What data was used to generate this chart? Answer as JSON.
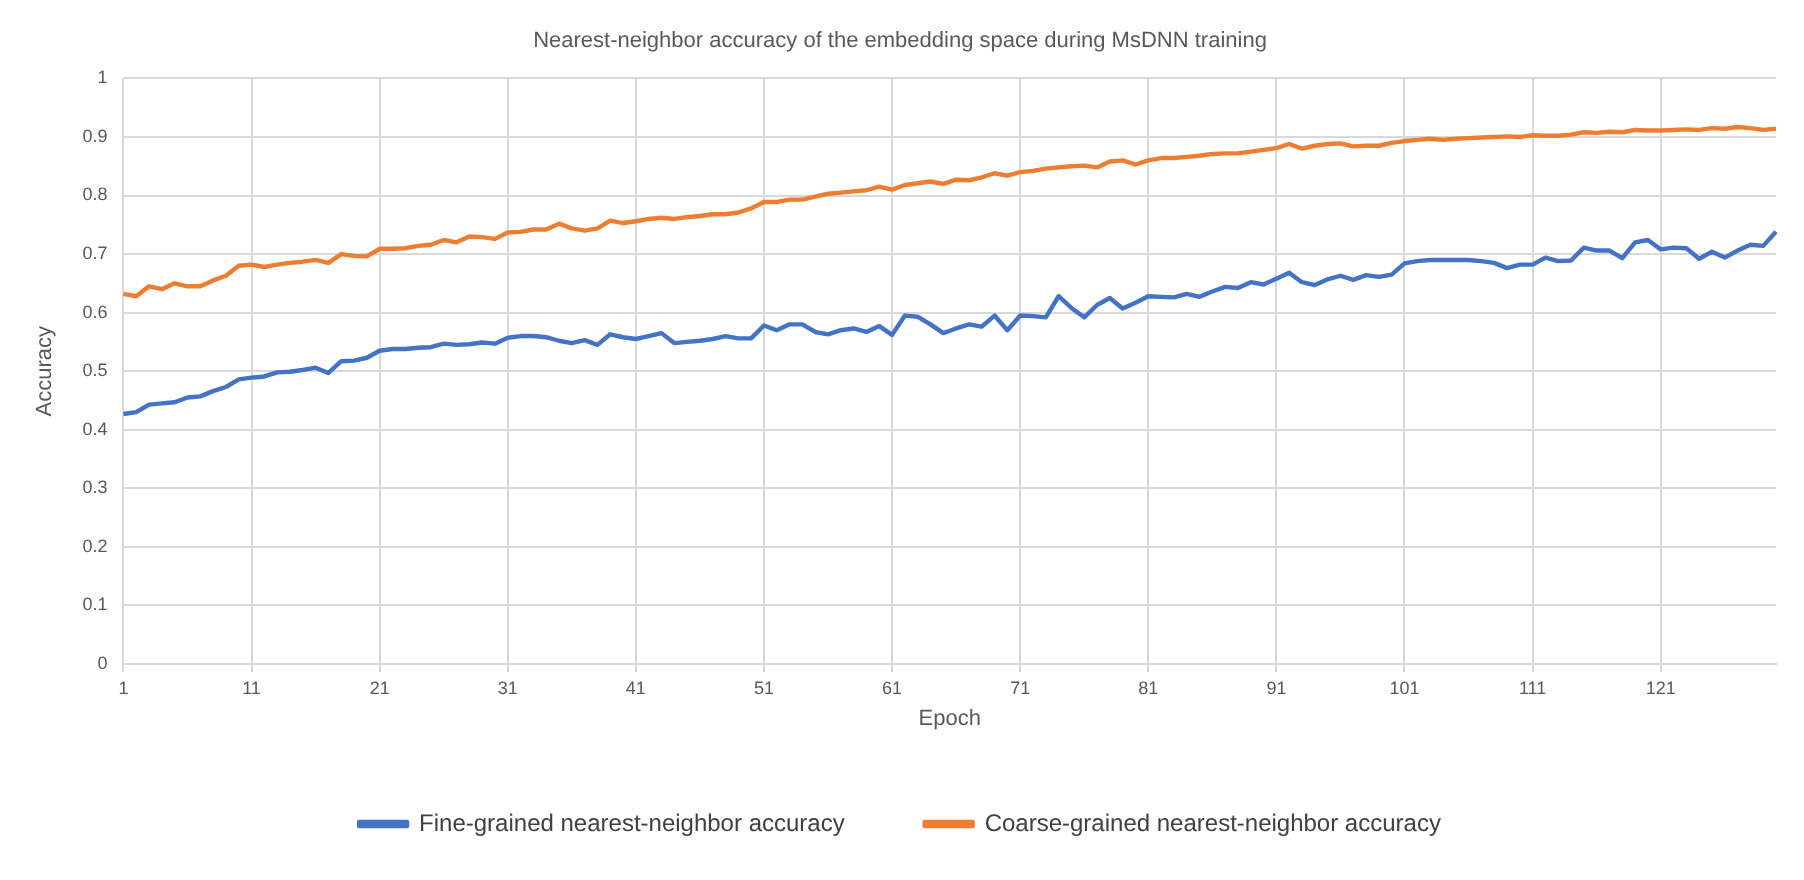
{
  "chart_data": {
    "type": "line",
    "title": "Nearest-neighbor accuracy of the embedding space during MsDNN training",
    "xlabel": "Epoch",
    "ylabel": "Accuracy",
    "categories": [
      "1",
      null,
      null,
      null,
      null,
      null,
      null,
      null,
      null,
      null,
      "11",
      null,
      null,
      null,
      null,
      null,
      null,
      null,
      null,
      null,
      "21",
      null,
      null,
      null,
      null,
      null,
      null,
      null,
      null,
      null,
      "31",
      null,
      null,
      null,
      null,
      null,
      null,
      null,
      null,
      null,
      "41",
      null,
      null,
      null,
      null,
      null,
      null,
      null,
      null,
      null,
      "51",
      null,
      null,
      null,
      null,
      null,
      null,
      null,
      null,
      null,
      "61",
      null,
      null,
      null,
      null,
      null,
      null,
      null,
      null,
      null,
      "71",
      null,
      null,
      null,
      null,
      null,
      null,
      null,
      null,
      null,
      "81",
      null,
      null,
      null,
      null,
      null,
      null,
      null,
      null,
      null,
      "91",
      null,
      null,
      null,
      null,
      null,
      null,
      null,
      null,
      null,
      "101",
      null,
      null,
      null,
      null,
      null,
      null,
      null,
      null,
      null,
      "111",
      null,
      null,
      null,
      null,
      null,
      null,
      null,
      null,
      null,
      "121",
      null,
      null,
      null,
      null,
      null,
      null,
      null,
      null,
      null
    ],
    "series": [
      {
        "name": "Fine-grained nearest-neighbor accuracy",
        "color": "#4472c4",
        "values": [
          0.427,
          0.43,
          0.443,
          0.445,
          0.447,
          0.455,
          0.457,
          0.466,
          0.473,
          0.486,
          0.489,
          0.491,
          0.498,
          0.499,
          0.502,
          0.506,
          0.497,
          0.517,
          0.518,
          0.523,
          0.535,
          0.538,
          0.538,
          0.54,
          0.541,
          0.547,
          0.545,
          0.546,
          0.549,
          0.547,
          0.557,
          0.56,
          0.56,
          0.558,
          0.552,
          0.548,
          0.553,
          0.545,
          0.563,
          0.558,
          0.555,
          0.56,
          0.565,
          0.548,
          0.55,
          0.552,
          0.555,
          0.56,
          0.556,
          0.556,
          0.578,
          0.57,
          0.58,
          0.58,
          0.567,
          0.563,
          0.57,
          0.573,
          0.567,
          0.577,
          0.562,
          0.595,
          0.593,
          0.58,
          0.565,
          0.573,
          0.58,
          0.576,
          0.595,
          0.57,
          0.595,
          0.594,
          0.592,
          0.628,
          0.608,
          0.592,
          0.613,
          0.625,
          0.607,
          0.617,
          0.628,
          0.627,
          0.626,
          0.632,
          0.627,
          0.636,
          0.644,
          0.642,
          0.652,
          0.648,
          0.658,
          0.668,
          0.652,
          0.647,
          0.657,
          0.663,
          0.656,
          0.664,
          0.661,
          0.665,
          0.684,
          0.688,
          0.69,
          0.69,
          0.69,
          0.69,
          0.688,
          0.685,
          0.676,
          0.682,
          0.682,
          0.694,
          0.688,
          0.689,
          0.711,
          0.706,
          0.706,
          0.693,
          0.72,
          0.724,
          0.708,
          0.711,
          0.71,
          0.692,
          0.704,
          0.694,
          0.706,
          0.716,
          0.714,
          0.738
        ]
      },
      {
        "name": "Coarse-grained nearest-neighbor accuracy",
        "color": "#ed7d31",
        "values": [
          0.632,
          0.628,
          0.645,
          0.64,
          0.65,
          0.645,
          0.645,
          0.655,
          0.663,
          0.68,
          0.682,
          0.678,
          0.682,
          0.685,
          0.687,
          0.69,
          0.685,
          0.7,
          0.697,
          0.696,
          0.709,
          0.709,
          0.71,
          0.714,
          0.716,
          0.724,
          0.72,
          0.73,
          0.729,
          0.726,
          0.737,
          0.738,
          0.742,
          0.742,
          0.752,
          0.744,
          0.74,
          0.744,
          0.757,
          0.753,
          0.756,
          0.76,
          0.762,
          0.76,
          0.763,
          0.765,
          0.768,
          0.768,
          0.771,
          0.778,
          0.789,
          0.789,
          0.793,
          0.793,
          0.798,
          0.803,
          0.805,
          0.807,
          0.809,
          0.815,
          0.81,
          0.818,
          0.821,
          0.824,
          0.82,
          0.827,
          0.826,
          0.831,
          0.838,
          0.834,
          0.84,
          0.842,
          0.846,
          0.848,
          0.85,
          0.851,
          0.848,
          0.858,
          0.86,
          0.853,
          0.86,
          0.864,
          0.864,
          0.866,
          0.868,
          0.871,
          0.872,
          0.872,
          0.875,
          0.878,
          0.881,
          0.888,
          0.88,
          0.885,
          0.888,
          0.889,
          0.884,
          0.885,
          0.885,
          0.89,
          0.893,
          0.895,
          0.897,
          0.895,
          0.897,
          0.898,
          0.899,
          0.9,
          0.901,
          0.9,
          0.903,
          0.902,
          0.902,
          0.904,
          0.908,
          0.907,
          0.909,
          0.908,
          0.912,
          0.911,
          0.911,
          0.912,
          0.913,
          0.912,
          0.915,
          0.914,
          0.917,
          0.915,
          0.912,
          0.914
        ]
      }
    ],
    "ylim": [
      0,
      1
    ],
    "yticks": [
      0,
      0.1,
      0.2,
      0.3,
      0.4,
      0.5,
      0.6,
      0.7,
      0.8,
      0.9,
      1
    ],
    "grid": true,
    "legend": "bottom",
    "marker": "none",
    "line_style": "solid"
  }
}
